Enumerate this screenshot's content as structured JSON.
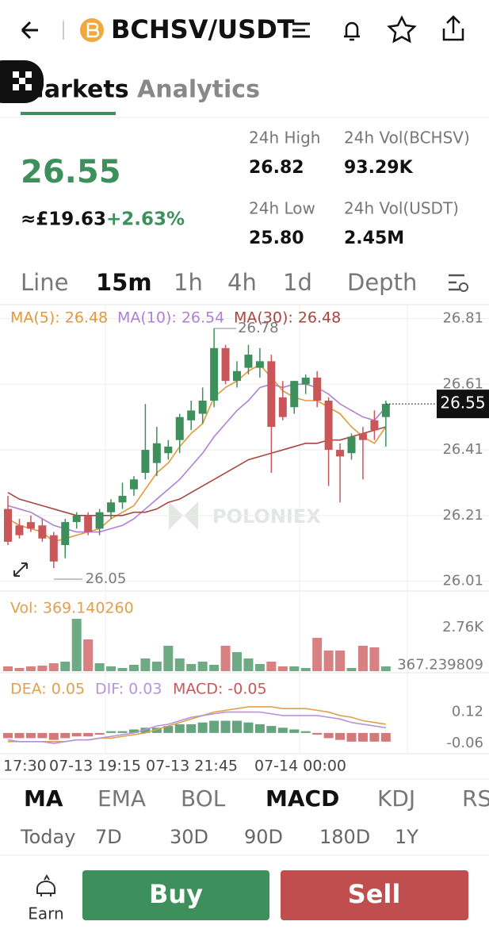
{
  "header": {
    "pair": "BCHSV/USDT"
  },
  "tabs": [
    "Markets",
    "Analytics"
  ],
  "ticker": {
    "price": "26.55",
    "fiat": "≈£19.63",
    "change": "+2.63%",
    "stats": [
      {
        "label": "24h High",
        "value": "26.82"
      },
      {
        "label": "24h Vol(BCHSV)",
        "value": "93.29K"
      },
      {
        "label": "24h Low",
        "value": "25.80"
      },
      {
        "label": "24h Vol(USDT)",
        "value": "2.45M"
      }
    ]
  },
  "timeframes": [
    "Line",
    "15m",
    "1h",
    "4h",
    "1d",
    "Depth"
  ],
  "chart_data": [
    {
      "type": "candlestick",
      "open": [
        26.23,
        26.18,
        26.19,
        26.18,
        26.15,
        26.12,
        26.19,
        26.21,
        26.17,
        26.22,
        26.25,
        26.29,
        26.34,
        26.37,
        26.4,
        26.44,
        26.5,
        26.52,
        26.56,
        26.72,
        26.62,
        26.66,
        26.66,
        26.68,
        26.57,
        26.54,
        26.61,
        26.63,
        26.56,
        26.41,
        26.4,
        26.46,
        26.5,
        26.51
      ],
      "high": [
        26.27,
        26.2,
        26.21,
        26.2,
        26.16,
        26.2,
        26.22,
        26.22,
        26.23,
        26.26,
        26.31,
        26.33,
        26.55,
        26.48,
        26.44,
        26.52,
        26.56,
        26.6,
        26.78,
        26.73,
        26.68,
        26.73,
        26.72,
        26.7,
        26.62,
        26.62,
        26.64,
        26.65,
        26.57,
        26.43,
        26.46,
        26.48,
        26.53,
        26.56
      ],
      "low": [
        26.12,
        26.14,
        26.16,
        26.13,
        26.05,
        26.08,
        26.17,
        26.15,
        26.15,
        26.2,
        26.23,
        26.27,
        26.32,
        26.33,
        26.38,
        26.4,
        26.47,
        26.49,
        26.54,
        26.61,
        26.6,
        26.64,
        26.63,
        26.34,
        26.5,
        26.52,
        26.58,
        26.54,
        26.3,
        26.25,
        26.38,
        26.32,
        26.44,
        26.42
      ],
      "close": [
        26.13,
        26.15,
        26.17,
        26.14,
        26.07,
        26.19,
        26.21,
        26.16,
        26.22,
        26.25,
        26.27,
        26.32,
        26.41,
        26.43,
        26.42,
        26.51,
        26.53,
        26.56,
        26.72,
        26.62,
        26.65,
        26.7,
        26.68,
        26.48,
        26.51,
        26.62,
        26.63,
        26.56,
        26.41,
        26.39,
        26.45,
        26.44,
        26.47,
        26.55
      ],
      "up_color": "#3d8f5c",
      "down_color": "#c9575a",
      "series": [
        {
          "name": "MA(5): 26.48",
          "color": "#e09a3a",
          "values": [
            26.2,
            26.18,
            26.17,
            26.16,
            26.13,
            26.14,
            26.15,
            26.16,
            26.17,
            26.2,
            26.22,
            26.24,
            26.29,
            26.34,
            26.37,
            26.42,
            26.46,
            26.49,
            26.57,
            26.6,
            26.62,
            26.65,
            26.67,
            26.63,
            26.59,
            26.57,
            26.56,
            26.56,
            26.54,
            26.52,
            26.48,
            26.45,
            26.43,
            26.48
          ]
        },
        {
          "name": "MA(10): 26.54",
          "color": "#b27fd6",
          "values": [
            26.24,
            26.23,
            26.22,
            26.2,
            26.18,
            26.17,
            26.16,
            26.16,
            26.16,
            26.17,
            26.18,
            26.2,
            26.23,
            26.26,
            26.29,
            26.32,
            26.36,
            26.4,
            26.45,
            26.49,
            26.53,
            26.56,
            26.6,
            26.61,
            26.6,
            26.61,
            26.61,
            26.6,
            26.58,
            26.55,
            26.53,
            26.51,
            26.5,
            26.54
          ]
        },
        {
          "name": "MA(30): 26.48",
          "color": "#a8463f",
          "values": [
            26.28,
            26.26,
            26.25,
            26.24,
            26.23,
            26.22,
            26.21,
            26.21,
            26.21,
            26.21,
            26.21,
            26.22,
            26.22,
            26.23,
            26.25,
            26.26,
            26.28,
            26.3,
            26.32,
            26.34,
            26.36,
            26.38,
            26.39,
            26.4,
            26.41,
            26.42,
            26.43,
            26.43,
            26.44,
            26.44,
            26.45,
            26.46,
            26.47,
            26.48
          ]
        }
      ],
      "max_label": 26.78,
      "min_label": 26.05,
      "last_price": 26.55,
      "ylim": [
        25.98,
        26.85
      ],
      "yticks": [
        26.81,
        26.61,
        26.41,
        26.21,
        26.01
      ],
      "grid": true
    },
    {
      "type": "bar",
      "title": "Vol: 369.140260",
      "values": [
        300,
        200,
        300,
        350,
        500,
        600,
        3300,
        2000,
        500,
        300,
        200,
        400,
        800,
        600,
        1600,
        800,
        450,
        600,
        400,
        1600,
        1200,
        800,
        450,
        600,
        300,
        300,
        200,
        2100,
        1300,
        1300,
        200,
        1600,
        1500,
        300
      ],
      "ylim": [
        0,
        3300
      ],
      "yticks": [
        {
          "value": 2760,
          "label": "2.76K"
        },
        367.239809
      ]
    },
    {
      "type": "macd",
      "series": [
        {
          "name": "DEA: 0.05",
          "color": "#e0a050",
          "values": [
            -0.05,
            -0.05,
            -0.05,
            -0.05,
            -0.05,
            -0.05,
            -0.04,
            -0.04,
            -0.03,
            -0.03,
            -0.02,
            -0.01,
            0.0,
            0.02,
            0.04,
            0.06,
            0.08,
            0.1,
            0.12,
            0.13,
            0.14,
            0.15,
            0.15,
            0.15,
            0.14,
            0.14,
            0.14,
            0.13,
            0.12,
            0.1,
            0.09,
            0.07,
            0.06,
            0.05
          ]
        },
        {
          "name": "DIF: 0.03",
          "color": "#b893dc",
          "values": [
            -0.04,
            -0.05,
            -0.05,
            -0.05,
            -0.06,
            -0.05,
            -0.04,
            -0.04,
            -0.03,
            -0.02,
            -0.01,
            0.0,
            0.02,
            0.04,
            0.05,
            0.07,
            0.09,
            0.1,
            0.11,
            0.12,
            0.12,
            0.12,
            0.12,
            0.11,
            0.1,
            0.1,
            0.1,
            0.1,
            0.09,
            0.08,
            0.06,
            0.05,
            0.04,
            0.03
          ]
        }
      ],
      "histogram": {
        "name": "MACD: -0.05",
        "values": [
          -0.03,
          -0.03,
          -0.03,
          -0.03,
          -0.04,
          -0.03,
          -0.02,
          -0.02,
          -0.01,
          0.01,
          0.01,
          0.02,
          0.03,
          0.03,
          0.04,
          0.05,
          0.05,
          0.06,
          0.07,
          0.07,
          0.07,
          0.06,
          0.05,
          0.04,
          0.03,
          0.02,
          0.01,
          -0.01,
          -0.03,
          -0.04,
          -0.05,
          -0.05,
          -0.05,
          -0.05
        ]
      },
      "ylim": [
        -0.11,
        0.2
      ],
      "yticks": [
        0.12,
        -0.06
      ],
      "x_labels": [
        "17:30",
        "07-13 19:15",
        "07-13 21:45",
        "07-14 00:00"
      ]
    }
  ],
  "indicators": [
    "MA",
    "EMA",
    "BOL",
    "MACD",
    "KDJ",
    "RS"
  ],
  "periods": [
    "Today",
    "7D",
    "30D",
    "90D",
    "180D",
    "1Y"
  ],
  "actions": {
    "earn": "Earn",
    "buy": "Buy",
    "sell": "Sell"
  },
  "watermark": "POLONIEX"
}
